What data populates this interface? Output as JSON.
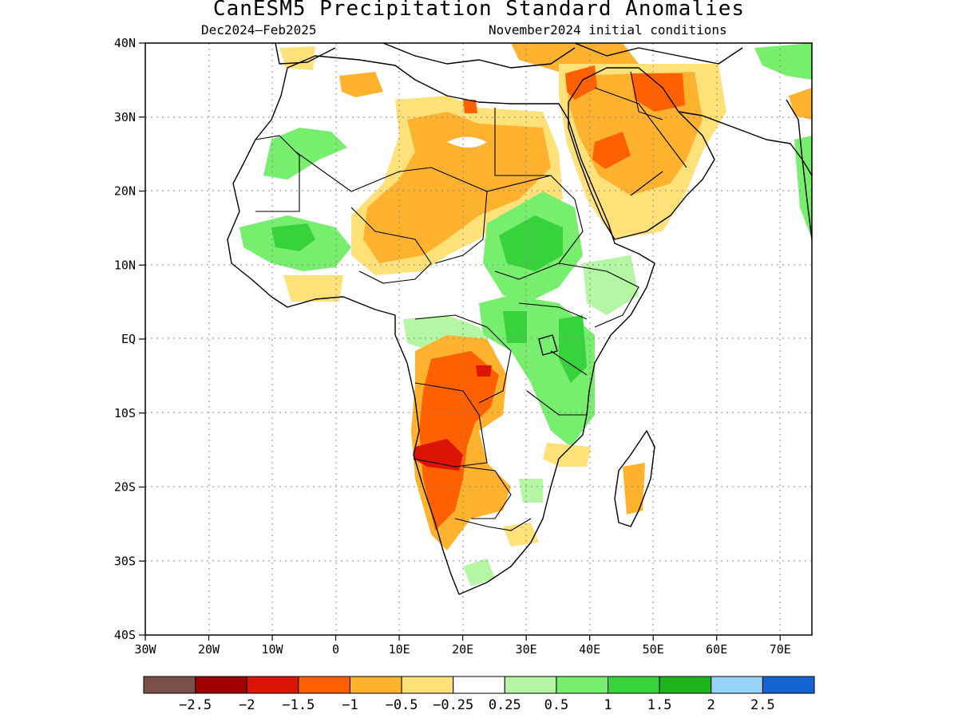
{
  "title": "CanESM5 Precipitation Standard Anomalies",
  "subtitle_left": "Dec2024–Feb2025",
  "subtitle_right": "November2024 initial conditions",
  "map": {
    "lon_range": [
      -30,
      75
    ],
    "lat_range": [
      -40,
      40
    ],
    "lat_ticks": [
      {
        "value": 40,
        "label": "40N"
      },
      {
        "value": 30,
        "label": "30N"
      },
      {
        "value": 20,
        "label": "20N"
      },
      {
        "value": 10,
        "label": "10N"
      },
      {
        "value": 0,
        "label": "EQ"
      },
      {
        "value": -10,
        "label": "10S"
      },
      {
        "value": -20,
        "label": "20S"
      },
      {
        "value": -30,
        "label": "30S"
      },
      {
        "value": -40,
        "label": "40S"
      }
    ],
    "lon_ticks": [
      {
        "value": -30,
        "label": "30W"
      },
      {
        "value": -20,
        "label": "20W"
      },
      {
        "value": -10,
        "label": "10W"
      },
      {
        "value": 0,
        "label": "0"
      },
      {
        "value": 10,
        "label": "10E"
      },
      {
        "value": 20,
        "label": "20E"
      },
      {
        "value": 30,
        "label": "30E"
      },
      {
        "value": 40,
        "label": "40E"
      },
      {
        "value": 50,
        "label": "50E"
      },
      {
        "value": 60,
        "label": "60E"
      },
      {
        "value": 70,
        "label": "70E"
      }
    ],
    "grid": true
  },
  "colorbar": {
    "colors": [
      "#7a5048",
      "#a00000",
      "#dc1405",
      "#ff6000",
      "#ffb22e",
      "#ffe17a",
      "#ffffff",
      "#b4f6a4",
      "#78ee6e",
      "#37d23c",
      "#1eb41e",
      "#96d2fa",
      "#1464d2"
    ],
    "labels": [
      "−2.5",
      "−2",
      "−1.5",
      "−1",
      "−0.5",
      "−0.25",
      "0.25",
      "0.5",
      "1",
      "1.5",
      "2",
      "2.5"
    ]
  },
  "colors": {
    "dry_strong": "#dc1405",
    "dry_mod": "#ff6000",
    "dry_light": "#ffb22e",
    "dry_weak": "#ffe17a",
    "wet_weak": "#b4f6a4",
    "wet_light": "#78ee6e",
    "wet_mod": "#37d23c"
  }
}
